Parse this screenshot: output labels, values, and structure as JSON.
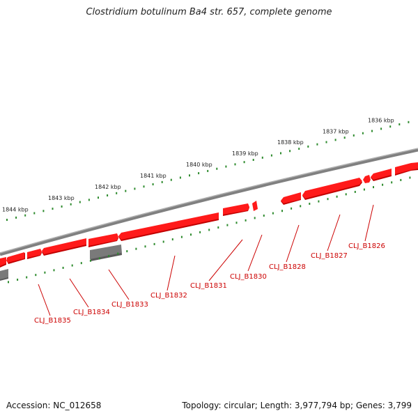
{
  "title": "Clostridium botulinum Ba4 str. 657, complete genome",
  "footer": {
    "accession": "Accession: NC_012658",
    "summary": "Topology: circular; Length: 3,977,794 bp; Genes: 3,799"
  },
  "colors": {
    "gene_forward": "#ff0000",
    "gene_forward_shadow": "#c00000",
    "gene_other": "#6e6e6e",
    "backbone": "#808080",
    "ticks": "#2e8b2e",
    "label": "#cc0000"
  },
  "kbp_labels": [
    "1836 kbp",
    "1837 kbp",
    "1838 kbp",
    "1839 kbp",
    "1840 kbp",
    "1841 kbp",
    "1842 kbp",
    "1843 kbp",
    "1844 kbp"
  ],
  "gene_labels": [
    "CLJ_B1826",
    "CLJ_B1827",
    "CLJ_B1828",
    "CLJ_B1830",
    "CLJ_B1831",
    "CLJ_B1832",
    "CLJ_B1833",
    "CLJ_B1834",
    "CLJ_B1835"
  ]
}
